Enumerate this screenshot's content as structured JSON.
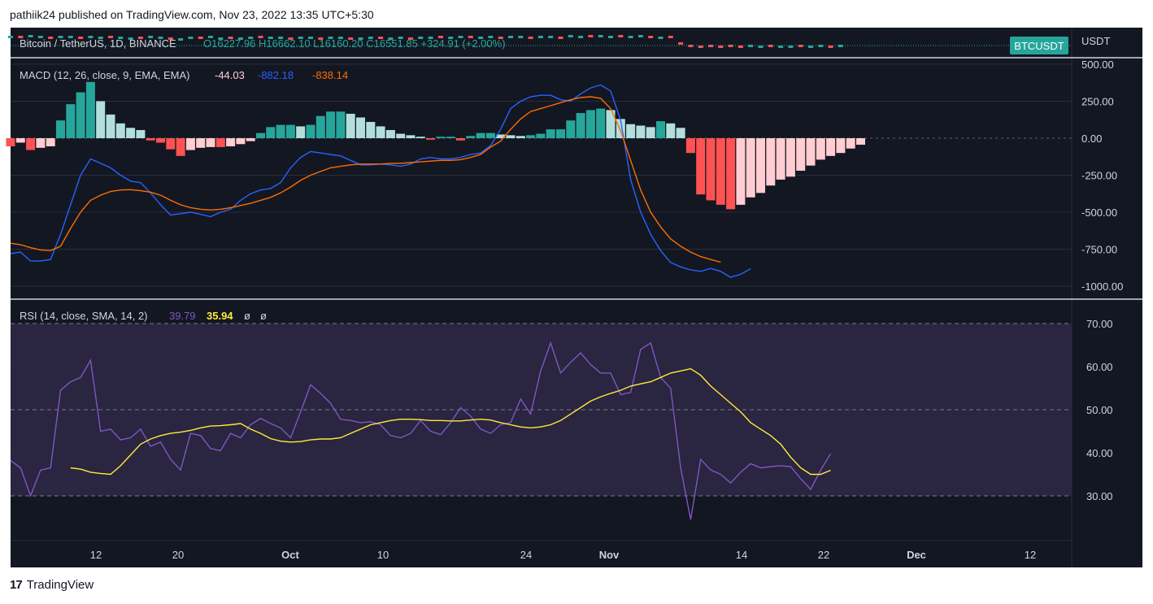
{
  "header": {
    "published_line": "pathiik24 published on TradingView.com, Nov 23, 2022 13:35 UTC+5:30"
  },
  "footer": {
    "brand": "TradingView",
    "logo_glyph": "17"
  },
  "colors": {
    "background": "#131722",
    "grid": "#2a2e39",
    "text": "#d1d4dc",
    "macd_line": "#2962ff",
    "signal_line": "#ff6d00",
    "hist_pos_strong": "#26a69a",
    "hist_pos_weak": "#b2dfdb",
    "hist_neg_strong": "#ff5252",
    "hist_neg_weak": "#ffcdd2",
    "rsi_line": "#7e57c2",
    "rsi_sma": "#ffeb3b",
    "rsi_band": "#2a2540",
    "symbol_badge": "#26a69a"
  },
  "chart_data": [
    {
      "type": "candlestick-strip",
      "symbol_line": "Bitcoin / TetherUS, 1D, BINANCE",
      "ohlc_text": "O16227.96  H16662.10  L16160.20  C16551.85  +324.91 (+2.00%)",
      "symbol_badge": "BTCUSDT",
      "currency_label": "USDT"
    },
    {
      "type": "bar",
      "title": "MACD (12, 26, close, 9, EMA, EMA)",
      "legend_values": [
        "-44.03",
        "-882.18",
        "-838.14"
      ],
      "ylim": [
        -1000,
        500
      ],
      "y_ticks": [
        "500.00",
        "250.00",
        "0.00",
        "-250.00",
        "-500.00",
        "-750.00",
        "-1000.00"
      ],
      "series": [
        {
          "name": "Histogram",
          "values": [
            -55,
            -30,
            -80,
            -65,
            -55,
            120,
            230,
            310,
            380,
            250,
            160,
            100,
            70,
            55,
            -15,
            -30,
            -75,
            -120,
            -80,
            -65,
            -60,
            -60,
            -55,
            -40,
            -20,
            35,
            75,
            90,
            90,
            80,
            90,
            150,
            180,
            180,
            165,
            140,
            110,
            80,
            55,
            30,
            20,
            10,
            -10,
            10,
            10,
            -15,
            15,
            35,
            35,
            25,
            20,
            15,
            20,
            30,
            60,
            60,
            120,
            170,
            190,
            200,
            190,
            130,
            95,
            85,
            75,
            115,
            100,
            70,
            -100,
            -380,
            -420,
            -450,
            -480,
            -450,
            -400,
            -370,
            -320,
            -280,
            -260,
            -220,
            -185,
            -145,
            -120,
            -100,
            -70,
            -44.03
          ]
        },
        {
          "name": "MACD",
          "values": [
            -780,
            -770,
            -830,
            -830,
            -820,
            -650,
            -450,
            -250,
            -140,
            -170,
            -200,
            -250,
            -290,
            -300,
            -370,
            -450,
            -520,
            -510,
            -500,
            -515,
            -530,
            -500,
            -480,
            -420,
            -375,
            -350,
            -340,
            -300,
            -200,
            -130,
            -90,
            -100,
            -110,
            -120,
            -150,
            -180,
            -180,
            -175,
            -180,
            -190,
            -175,
            -140,
            -130,
            -140,
            -140,
            -130,
            -110,
            -100,
            -50,
            60,
            200,
            250,
            280,
            290,
            290,
            260,
            250,
            300,
            340,
            360,
            320,
            120,
            -280,
            -500,
            -650,
            -760,
            -840,
            -870,
            -890,
            -900,
            -880,
            -900,
            -940,
            -920,
            -882.18
          ]
        },
        {
          "name": "Signal",
          "values": [
            -710,
            -720,
            -740,
            -755,
            -760,
            -730,
            -610,
            -500,
            -420,
            -385,
            -360,
            -350,
            -348,
            -355,
            -365,
            -385,
            -420,
            -450,
            -470,
            -480,
            -485,
            -480,
            -470,
            -455,
            -440,
            -420,
            -400,
            -370,
            -330,
            -285,
            -250,
            -225,
            -200,
            -190,
            -180,
            -175,
            -175,
            -175,
            -170,
            -170,
            -165,
            -160,
            -155,
            -150,
            -150,
            -145,
            -130,
            -110,
            -60,
            -20,
            60,
            130,
            180,
            200,
            220,
            240,
            260,
            275,
            280,
            270,
            200,
            50,
            -150,
            -350,
            -500,
            -600,
            -680,
            -730,
            -770,
            -800,
            -820,
            -838.14
          ]
        }
      ]
    },
    {
      "type": "line",
      "title": "RSI (14, close, SMA, 14, 2)",
      "legend_values": [
        "39.79",
        "35.94",
        "ø",
        "ø"
      ],
      "ylim": [
        20,
        75
      ],
      "y_ticks": [
        "70.00",
        "60.00",
        "50.00",
        "40.00",
        "30.00"
      ],
      "x_tick_labels": [
        "12",
        "20",
        "Oct",
        "10",
        "24",
        "Nov",
        "14",
        "22",
        "Dec",
        "12"
      ],
      "series": [
        {
          "name": "RSI",
          "values": [
            38.2,
            36.5,
            30,
            36.0,
            36.5,
            54.5,
            56.5,
            57.5,
            61.5,
            45,
            45.5,
            43.0,
            43.5,
            45.5,
            41.5,
            42.5,
            38.5,
            36.0,
            44.5,
            44.0,
            41,
            40.5,
            44.5,
            43.5,
            46.5,
            48,
            46.8,
            45.8,
            43.5,
            49.5,
            55.8,
            53.8,
            51.5,
            47.8,
            47.5,
            47.0,
            47.2,
            46.5,
            44,
            43.5,
            44.5,
            47.5,
            45,
            44.2,
            47.0,
            50.5,
            48.5,
            45.5,
            44.5,
            46.5,
            47.0,
            52.5,
            49.0,
            59,
            65.5,
            58.5,
            61,
            63.2,
            60.5,
            58.5,
            58.5,
            53.5,
            54.0,
            64.0,
            65.5,
            57.5,
            55,
            36.5,
            24.5,
            38.5,
            36.0,
            35.0,
            33.0,
            35.5,
            37.5,
            36.5,
            36.8,
            37.0,
            36.8,
            34.0,
            31.5,
            36.0,
            39.79
          ]
        },
        {
          "name": "RSI SMA",
          "values": [
            36.5,
            36.2,
            35.5,
            35.2,
            35.0,
            37.0,
            39.5,
            42.0,
            43.2,
            44.0,
            44.5,
            44.8,
            45.2,
            45.8,
            46.2,
            46.3,
            46.5,
            46.8,
            45.5,
            44.5,
            43.3,
            42.7,
            42.5,
            42.6,
            43.0,
            43.2,
            43.2,
            43.5,
            44.5,
            45.5,
            46.5,
            47.0,
            47.5,
            47.8,
            47.8,
            47.7,
            47.5,
            47.5,
            47.4,
            47.4,
            47.6,
            47.8,
            47.6,
            47.0,
            46.5,
            46.0,
            45.8,
            46.0,
            46.5,
            47.5,
            49.0,
            50.5,
            52.0,
            53.0,
            53.8,
            54.5,
            55.5,
            56.0,
            56.5,
            57.5,
            58.5,
            59.0,
            59.5,
            58.0,
            55.5,
            53.5,
            51.5,
            49.5,
            47.0,
            45.5,
            44.0,
            42.0,
            39.0,
            36.5,
            35.0,
            35.0,
            35.94
          ]
        }
      ]
    }
  ]
}
